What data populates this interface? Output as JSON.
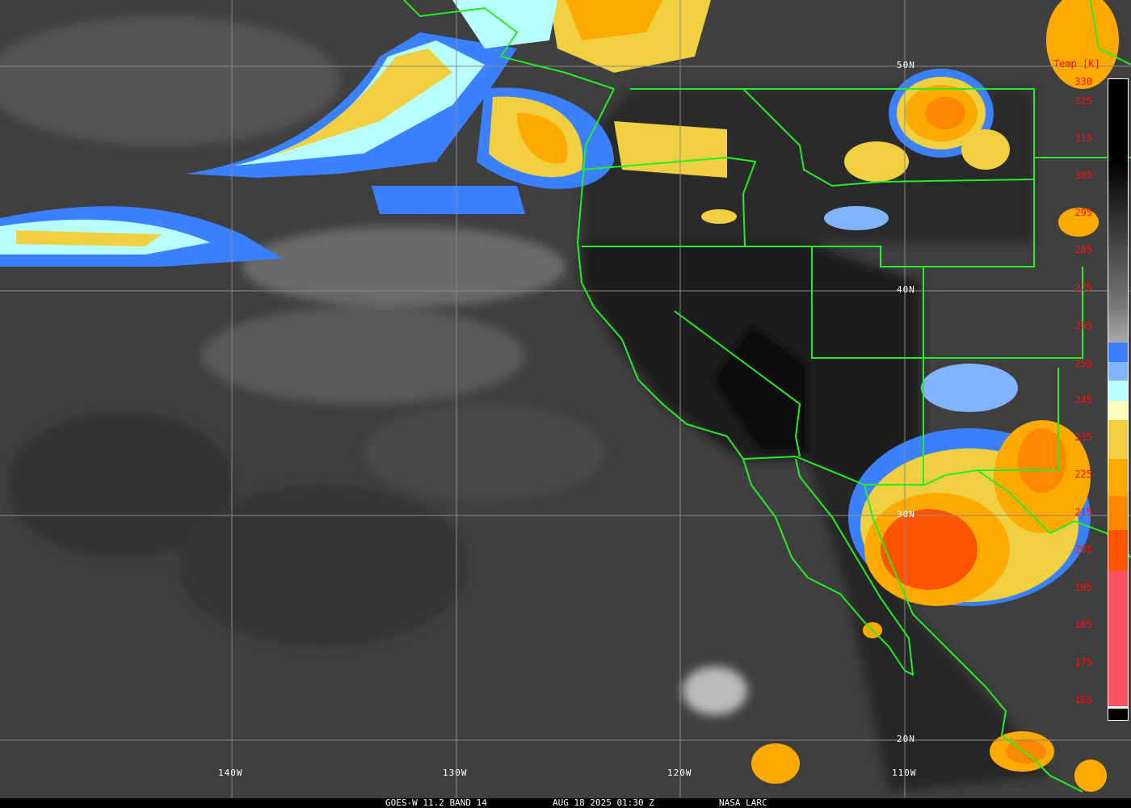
{
  "footer": {
    "satellite": "GOES-W 11.2 BAND 14",
    "datetime": "AUG 18 2025 01:30 Z",
    "source": "NASA LARC"
  },
  "grid": {
    "latitudes": [
      "50N",
      "40N",
      "30N",
      "20N"
    ],
    "longitudes": [
      "140W",
      "130W",
      "120W",
      "110W"
    ],
    "line_color": "#8a8a8a"
  },
  "border_color": "#22ee22",
  "colorbar": {
    "title": "Temp [K]",
    "ticks": [
      "330",
      "325",
      "315",
      "305",
      "295",
      "285",
      "275",
      "265",
      "255",
      "245",
      "235",
      "225",
      "215",
      "205",
      "195",
      "185",
      "175",
      "165"
    ],
    "label_color": "#ff1010",
    "segments": [
      {
        "from_k": 255,
        "to_k": 330,
        "color": "gradient black-to-gray"
      },
      {
        "color": "#3a80ff"
      },
      {
        "color": "#80b4ff"
      },
      {
        "color": "#b8ffff"
      },
      {
        "color": "#ffffc0"
      },
      {
        "color": "#f0d040"
      },
      {
        "color": "#ffaa00"
      },
      {
        "color": "#ff8800"
      },
      {
        "color": "#ff5500"
      },
      {
        "color": "#ff5064"
      }
    ]
  }
}
